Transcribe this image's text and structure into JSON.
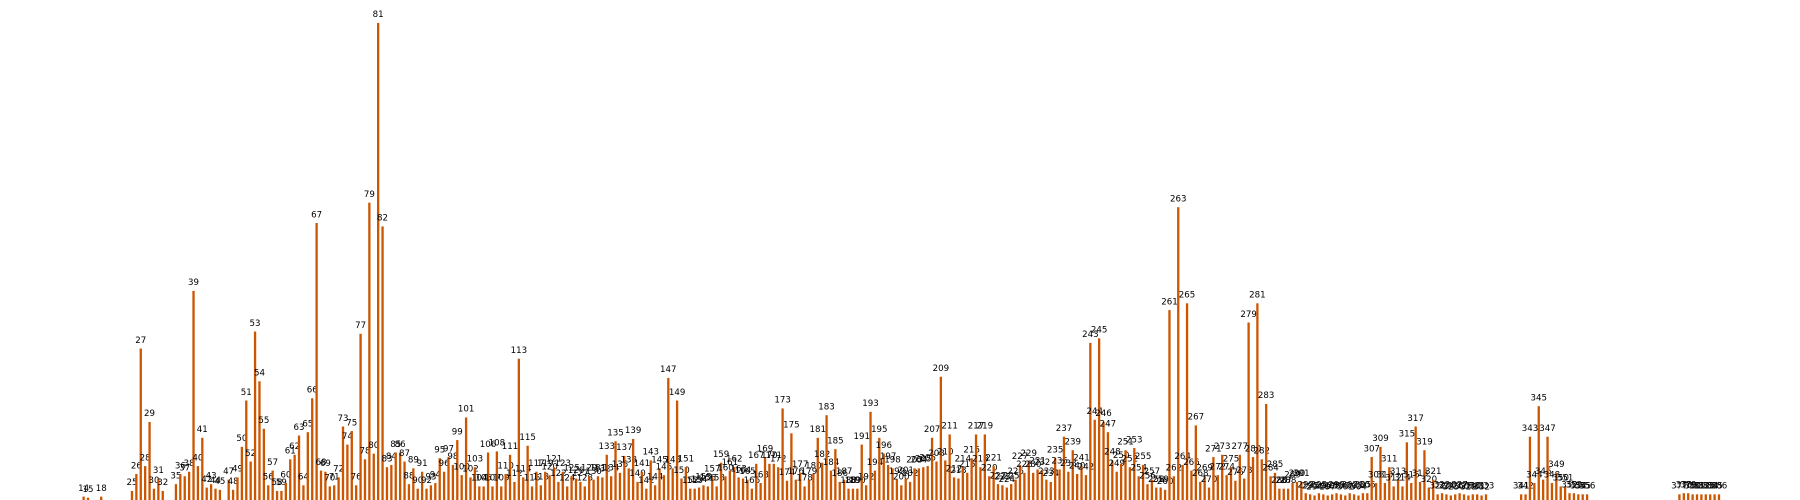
{
  "chart_data": {
    "type": "bar",
    "color": "#cc5500",
    "categories": [
      null,
      null,
      null,
      null,
      null,
      null,
      null,
      null,
      null,
      null,
      null,
      null,
      null,
      14,
      15,
      null,
      null,
      18,
      null,
      null,
      null,
      null,
      null,
      null,
      25,
      26,
      27,
      28,
      29,
      30,
      31,
      32,
      null,
      null,
      35,
      36,
      37,
      38,
      39,
      40,
      41,
      42,
      43,
      44,
      45,
      null,
      47,
      48,
      49,
      50,
      51,
      52,
      53,
      54,
      55,
      56,
      57,
      58,
      59,
      60,
      61,
      62,
      63,
      64,
      65,
      66,
      67,
      68,
      69,
      70,
      71,
      72,
      73,
      74,
      75,
      76,
      77,
      78,
      79,
      80,
      81,
      82,
      83,
      84,
      85,
      86,
      87,
      88,
      89,
      90,
      91,
      92,
      93,
      94,
      95,
      96,
      97,
      98,
      99,
      100,
      101,
      102,
      103,
      104,
      105,
      106,
      107,
      108,
      109,
      110,
      111,
      112,
      113,
      114,
      115,
      116,
      117,
      118,
      119,
      120,
      121,
      122,
      123,
      124,
      125,
      126,
      127,
      128,
      129,
      130,
      131,
      132,
      133,
      134,
      135,
      136,
      137,
      138,
      139,
      140,
      141,
      142,
      143,
      144,
      145,
      146,
      147,
      148,
      149,
      150,
      151,
      152,
      153,
      154,
      155,
      156,
      157,
      158,
      159,
      160,
      161,
      162,
      163,
      164,
      165,
      166,
      167,
      168,
      169,
      170,
      171,
      172,
      173,
      174,
      175,
      176,
      177,
      178,
      179,
      180,
      181,
      182,
      183,
      184,
      185,
      186,
      187,
      188,
      189,
      190,
      191,
      192,
      193,
      194,
      195,
      196,
      197,
      198,
      199,
      200,
      201,
      202,
      203,
      204,
      205,
      206,
      207,
      208,
      209,
      210,
      211,
      212,
      213,
      214,
      215,
      216,
      217,
      218,
      219,
      220,
      221,
      222,
      223,
      224,
      225,
      226,
      227,
      228,
      229,
      230,
      231,
      232,
      233,
      234,
      235,
      236,
      237,
      238,
      239,
      240,
      241,
      242,
      243,
      244,
      245,
      246,
      247,
      248,
      249,
      250,
      251,
      252,
      253,
      254,
      255,
      256,
      257,
      258,
      259,
      260,
      261,
      262,
      263,
      264,
      265,
      266,
      267,
      268,
      269,
      270,
      271,
      272,
      273,
      274,
      275,
      276,
      277,
      278,
      279,
      280,
      281,
      282,
      283,
      284,
      285,
      286,
      287,
      288,
      289,
      290,
      291,
      292,
      293,
      294,
      295,
      296,
      297,
      298,
      299,
      300,
      301,
      302,
      303,
      304,
      305,
      306,
      307,
      308,
      309,
      310,
      311,
      312,
      313,
      314,
      315,
      316,
      317,
      318,
      319,
      320,
      321,
      322,
      323,
      324,
      325,
      326,
      327,
      328,
      329,
      330,
      331,
      332,
      333,
      null,
      null,
      null,
      null,
      null,
      null,
      null,
      341,
      342,
      343,
      344,
      345,
      346,
      347,
      348,
      349,
      350,
      351,
      352,
      353,
      354,
      355,
      356,
      null,
      null,
      null,
      null,
      null,
      null,
      null,
      null,
      null,
      null,
      null,
      null,
      null,
      null,
      null,
      null,
      null,
      null,
      null,
      null,
      377,
      378,
      379,
      380,
      381,
      382,
      383,
      384,
      385,
      386
    ],
    "values": [
      0,
      0,
      0,
      0,
      0,
      0,
      0,
      0,
      0,
      0,
      0,
      0,
      0,
      3,
      2,
      0,
      0,
      3,
      0,
      0,
      0,
      0,
      0,
      0,
      8,
      23,
      134,
      30,
      69,
      10,
      19,
      8,
      0,
      0,
      14,
      23,
      21,
      25,
      185,
      30,
      55,
      11,
      14,
      10,
      9,
      0,
      18,
      9,
      20,
      47,
      88,
      34,
      149,
      105,
      63,
      13,
      26,
      8,
      8,
      15,
      36,
      40,
      57,
      13,
      60,
      90,
      245,
      26,
      25,
      12,
      13,
      20,
      65,
      49,
      61,
      13,
      147,
      36,
      263,
      41,
      422,
      242,
      29,
      31,
      42,
      42,
      34,
      14,
      28,
      10,
      25,
      10,
      13,
      15,
      37,
      25,
      38,
      31,
      53,
      22,
      73,
      20,
      29,
      12,
      12,
      42,
      12,
      43,
      12,
      23,
      40,
      16,
      125,
      20,
      48,
      12,
      25,
      13,
      25,
      22,
      29,
      16,
      25,
      12,
      21,
      19,
      16,
      12,
      21,
      18,
      21,
      20,
      40,
      21,
      52,
      24,
      39,
      28,
      54,
      16,
      25,
      10,
      35,
      13,
      28,
      22,
      108,
      28,
      88,
      19,
      29,
      10,
      10,
      11,
      13,
      12,
      20,
      12,
      33,
      21,
      26,
      29,
      20,
      19,
      18,
      10,
      32,
      15,
      38,
      32,
      32,
      29,
      81,
      17,
      59,
      18,
      24,
      12,
      18,
      23,
      55,
      33,
      75,
      26,
      45,
      16,
      18,
      10,
      10,
      10,
      49,
      13,
      78,
      26,
      55,
      41,
      31,
      28,
      18,
      13,
      19,
      16,
      28,
      28,
      29,
      30,
      55,
      34,
      109,
      35,
      58,
      20,
      19,
      29,
      24,
      37,
      58,
      29,
      58,
      21,
      30,
      14,
      13,
      11,
      14,
      18,
      31,
      24,
      34,
      24,
      27,
      26,
      18,
      16,
      37,
      27,
      56,
      25,
      44,
      23,
      30,
      22,
      139,
      71,
      143,
      69,
      60,
      35,
      25,
      32,
      44,
      29,
      46,
      21,
      31,
      14,
      18,
      11,
      11,
      9,
      168,
      21,
      259,
      31,
      174,
      26,
      66,
      16,
      21,
      11,
      38,
      22,
      40,
      22,
      29,
      17,
      40,
      19,
      157,
      38,
      174,
      36,
      85,
      21,
      24,
      10,
      10,
      10,
      15,
      16,
      16,
      6,
      5,
      4,
      6,
      5,
      4,
      5,
      6,
      5,
      4,
      6,
      5,
      4,
      6,
      6,
      38,
      15,
      47,
      15,
      29,
      12,
      18,
      12,
      51,
      15,
      65,
      16,
      44,
      11,
      18,
      5,
      6,
      5,
      4,
      5,
      6,
      5,
      4,
      5,
      5,
      4,
      5,
      0,
      0,
      0,
      0,
      0,
      0,
      0,
      5,
      5,
      56,
      15,
      83,
      18,
      56,
      15,
      24,
      12,
      12,
      6,
      6,
      5,
      5,
      5,
      0,
      0,
      0,
      0,
      0,
      0,
      0,
      0,
      0,
      0,
      0,
      0,
      0,
      0,
      0,
      0,
      0,
      0,
      0,
      0,
      5,
      6,
      6,
      5,
      5,
      5,
      5,
      5,
      5,
      5
    ]
  }
}
